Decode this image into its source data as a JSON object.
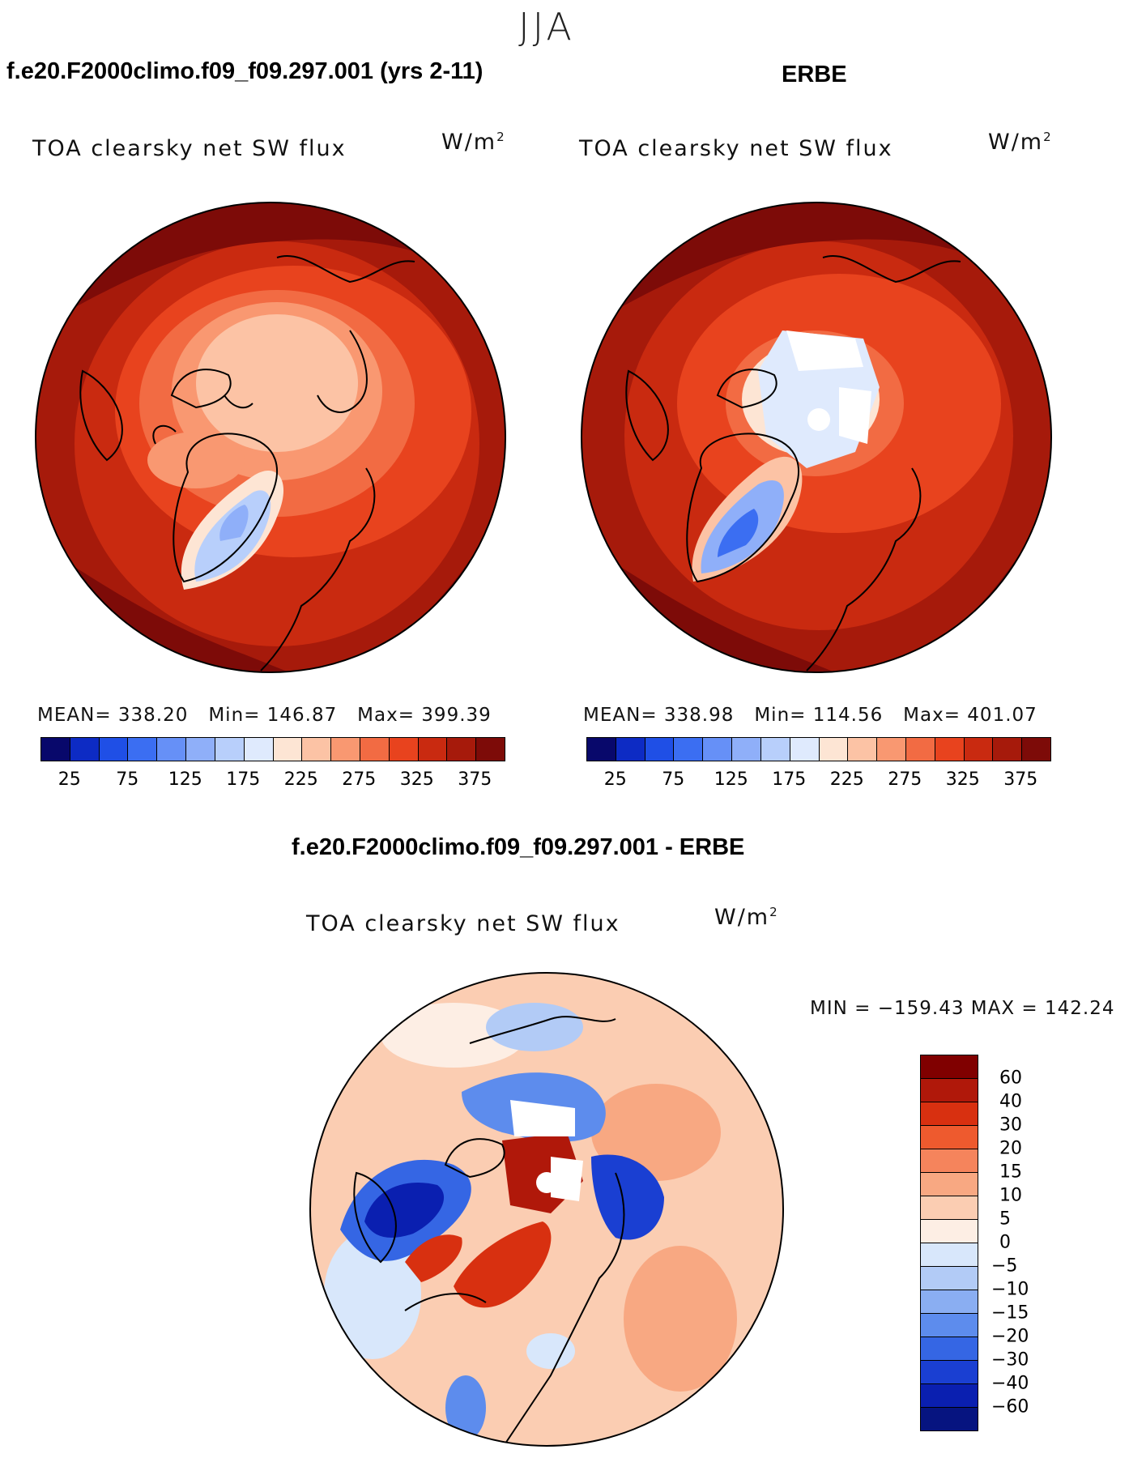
{
  "season": "JJA",
  "panels": {
    "model": {
      "case_title": "f.e20.F2000climo.f09_f09.297.001 (yrs 2-11)",
      "var_title": "TOA clearsky net SW flux",
      "units": "W/m",
      "units_sup": "2",
      "stats": {
        "mean_label": "MEAN=",
        "mean": "338.20",
        "min_label": "Min=",
        "min": "146.87",
        "max_label": "Max=",
        "max": "399.39"
      }
    },
    "obs": {
      "case_title": "ERBE",
      "var_title": "TOA clearsky net SW flux",
      "units": "W/m",
      "units_sup": "2",
      "stats": {
        "mean_label": "MEAN=",
        "mean": "338.98",
        "min_label": "Min=",
        "min": "114.56",
        "max_label": "Max=",
        "max": "401.07"
      }
    },
    "diff": {
      "case_title": "f.e20.F2000climo.f09_f09.297.001 - ERBE",
      "var_title": "TOA clearsky net SW flux",
      "units": "W/m",
      "units_sup": "2",
      "minmax": "MIN = −159.43 MAX = 142.24"
    }
  },
  "chart_data": [
    {
      "type": "heatmap",
      "projection": "north-polar-stereographic",
      "title": "TOA clearsky net SW flux",
      "units": "W/m2",
      "dataset": "f.e20.F2000climo.f09_f09.297.001 (yrs 2-11)",
      "mean": 338.2,
      "min": 146.87,
      "max": 399.39,
      "colorbar_ticks": [
        "25",
        "75",
        "125",
        "175",
        "225",
        "275",
        "325",
        "375"
      ],
      "colorbar_levels": [
        25,
        50,
        75,
        100,
        125,
        150,
        175,
        200,
        225,
        250,
        275,
        300,
        325,
        350,
        375
      ],
      "colorbar_colors": [
        "#08086b",
        "#0d2bc4",
        "#1f4fe6",
        "#3b6ef2",
        "#6690f7",
        "#8faff9",
        "#b8cffb",
        "#dfeafd",
        "#fde5d4",
        "#fcc3a5",
        "#f99871",
        "#f26b43",
        "#e8431e",
        "#c92a10",
        "#a61a0b",
        "#7d0b08"
      ]
    },
    {
      "type": "heatmap",
      "projection": "north-polar-stereographic",
      "title": "TOA clearsky net SW flux",
      "units": "W/m2",
      "dataset": "ERBE",
      "mean": 338.98,
      "min": 114.56,
      "max": 401.07,
      "colorbar_ticks": [
        "25",
        "75",
        "125",
        "175",
        "225",
        "275",
        "325",
        "375"
      ],
      "colorbar_levels": [
        25,
        50,
        75,
        100,
        125,
        150,
        175,
        200,
        225,
        250,
        275,
        300,
        325,
        350,
        375
      ]
    },
    {
      "type": "heatmap",
      "projection": "north-polar-stereographic",
      "title": "TOA clearsky net SW flux",
      "units": "W/m2",
      "dataset": "f.e20.F2000climo.f09_f09.297.001 - ERBE",
      "min": -159.43,
      "max": 142.24,
      "colorbar_ticks": [
        "60",
        "40",
        "30",
        "20",
        "15",
        "10",
        "5",
        "0",
        "−5",
        "−10",
        "−15",
        "−20",
        "−30",
        "−40",
        "−60"
      ],
      "colorbar_colors": [
        "#800000",
        "#b0180a",
        "#d83010",
        "#ee5a2e",
        "#f5845c",
        "#f8a882",
        "#fbcdb2",
        "#fdeee4",
        "#d8e7fb",
        "#b2cbf6",
        "#8aaef2",
        "#5d8ced",
        "#3566e4",
        "#1a3fd2",
        "#0a1fb0",
        "#061480"
      ]
    }
  ]
}
